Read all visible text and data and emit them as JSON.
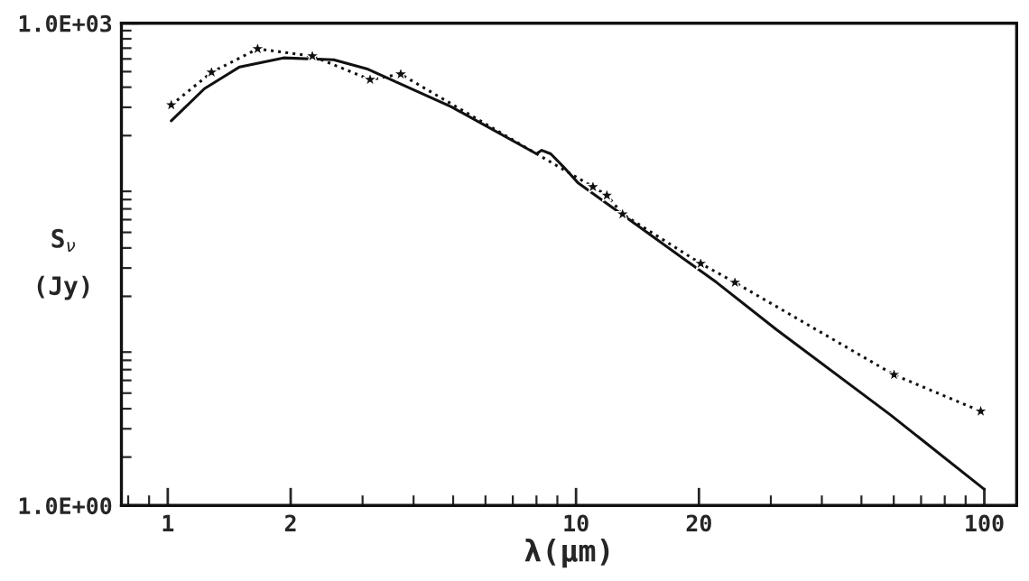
{
  "chart_data": {
    "type": "line",
    "xlabel": "λ(μm)",
    "ylabel": "S$_{ν}$\n(Jy)",
    "log": "xy",
    "xlim": [
      0.77,
      120
    ],
    "ylim": [
      1,
      1000
    ],
    "xticks": [
      1,
      2,
      10,
      20,
      100
    ],
    "yticks": [
      {
        "value": 1,
        "label": "1.0E+00"
      },
      {
        "value": 1000,
        "label": "1.0E+03"
      }
    ],
    "grid": false,
    "legend": false,
    "series": [
      {
        "color": "#111111",
        "line_style": "solid",
        "marker": "none",
        "x": [
          1.02,
          1.23,
          1.5,
          1.92,
          2.55,
          3.07,
          4.95,
          8.0,
          8.24,
          8.67,
          9.31,
          10.1,
          22.1,
          31.0,
          58.9,
          100
        ],
        "values": [
          247,
          392,
          535,
          609,
          593,
          521,
          302,
          154,
          162,
          154,
          128,
          102,
          24.4,
          12.4,
          3.66,
          1.26
        ]
      },
      {
        "color": "#111111",
        "line_style": "dotted",
        "marker": "star",
        "x": [
          1.02,
          1.28,
          1.66,
          2.26,
          3.13,
          3.72,
          11.0,
          11.9,
          13.0,
          20.2,
          24.5,
          60.1,
          98
        ],
        "values": [
          310,
          495,
          693,
          625,
          446,
          482,
          96,
          85,
          65,
          32,
          24.4,
          6.5,
          3.86
        ]
      }
    ]
  }
}
